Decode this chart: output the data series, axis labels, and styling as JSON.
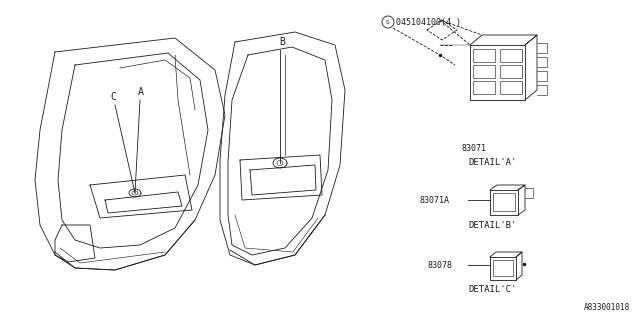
{
  "bg_color": "#ffffff",
  "line_color": "#1a1a1a",
  "fig_width": 6.4,
  "fig_height": 3.2,
  "dpi": 100,
  "part_number_screw": "045104100(4 )",
  "part_83071": "83071",
  "part_83071A": "83071A",
  "part_83078": "83078",
  "detail_a": "DETAIL'A'",
  "detail_b": "DETAIL'B'",
  "detail_c": "DETAIL'C'",
  "label_a": "A",
  "label_b": "B",
  "label_c": "C",
  "watermark": "A833001018",
  "s_symbol": "S",
  "font_size_labels": 7,
  "font_size_parts": 6,
  "font_size_detail": 6.5,
  "font_size_watermark": 5.5
}
